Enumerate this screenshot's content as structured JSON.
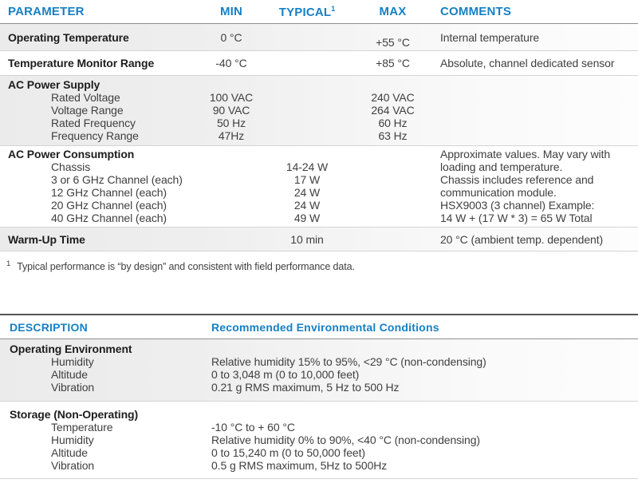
{
  "colors": {
    "header_blue": "#1680c4",
    "shaded_row_left": "#ebebeb",
    "divider": "#d4d4d4",
    "table2_top_border": "#55565b"
  },
  "table1": {
    "headers": {
      "parameter": "PARAMETER",
      "min": "MIN",
      "typical": "TYPICAL",
      "typical_footnote_ref": "1",
      "max": "MAX",
      "comments": "COMMENTS"
    },
    "row_operating_temp": {
      "parameter": "Operating Temperature",
      "min": "0 °C",
      "max": "+55 °C",
      "comment": "Internal temperature"
    },
    "row_temp_monitor": {
      "parameter": "Temperature Monitor Range",
      "min": "-40 °C",
      "max": "+85 °C",
      "comment": "Absolute, channel dedicated sensor"
    },
    "group_ac_supply": {
      "title": "AC Power Supply",
      "items": [
        {
          "label": "Rated Voltage",
          "min": "100 VAC",
          "max": "240 VAC"
        },
        {
          "label": "Voltage Range",
          "min": "90 VAC",
          "max": "264 VAC"
        },
        {
          "label": "Rated Frequency",
          "min": "50 Hz",
          "max": "60 Hz"
        },
        {
          "label": "Frequency Range",
          "min": "47Hz",
          "max": "63 Hz"
        }
      ]
    },
    "group_ac_consumption": {
      "title": "AC Power Consumption",
      "items": [
        {
          "label": "Chassis",
          "typical": "14-24 W"
        },
        {
          "label": "3 or 6 GHz Channel (each)",
          "typical": "17 W"
        },
        {
          "label": "12 GHz Channel (each)",
          "typical": "24 W"
        },
        {
          "label": "20 GHz Channel (each)",
          "typical": "24 W"
        },
        {
          "label": "40 GHz Channel (each)",
          "typical": "49 W"
        }
      ],
      "comment_lines": [
        "Approximate values. May vary with",
        "loading and temperature.",
        "Chassis includes reference and",
        "communication module.",
        "HSX9003 (3 channel) Example:",
        "14 W + (17 W * 3) = 65 W Total"
      ]
    },
    "row_warm_up": {
      "parameter": "Warm-Up Time",
      "typical": "10 min",
      "comment": "20 °C (ambient temp. dependent)"
    }
  },
  "footnote": {
    "ref": "1",
    "text": "Typical performance is “by design” and consistent with field performance data."
  },
  "table2": {
    "headers": {
      "description": "DESCRIPTION",
      "conditions": "Recommended Environmental Conditions"
    },
    "group_operating": {
      "title": "Operating Environment",
      "items": [
        {
          "label": "Humidity",
          "value": "Relative humidity 15% to 95%, <29 °C (non-condensing)"
        },
        {
          "label": "Altitude",
          "value": "0 to 3,048 m (0 to 10,000 feet)"
        },
        {
          "label": "Vibration",
          "value": "0.21 g RMS maximum, 5 Hz to 500 Hz"
        }
      ]
    },
    "group_storage": {
      "title": "Storage (Non-Operating)",
      "items": [
        {
          "label": "Temperature",
          "value": "-10 °C to + 60 °C"
        },
        {
          "label": "Humidity",
          "value": "Relative humidity 0% to 90%, <40 °C (non-condensing)"
        },
        {
          "label": "Altitude",
          "value": "0 to 15,240 m (0 to 50,000 feet)"
        },
        {
          "label": "Vibration",
          "value": "0.5 g RMS maximum, 5Hz to 500Hz"
        }
      ]
    }
  }
}
